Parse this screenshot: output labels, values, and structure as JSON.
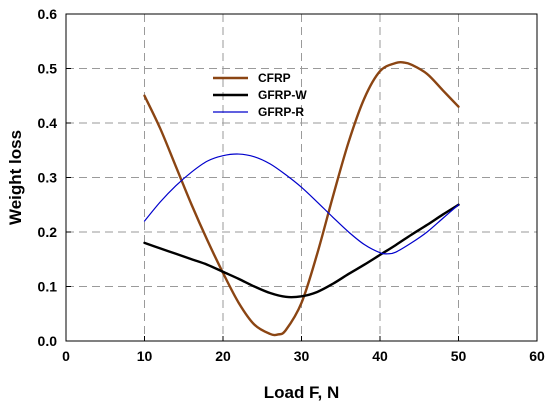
{
  "chart_data": {
    "type": "line",
    "title": "",
    "xlabel": "Load F, N",
    "ylabel": "Weight loss",
    "xlim": [
      0,
      60
    ],
    "ylim": [
      0,
      0.6
    ],
    "x_ticks": [
      0,
      10,
      20,
      30,
      40,
      50,
      60
    ],
    "y_ticks": [
      0.0,
      0.1,
      0.2,
      0.3,
      0.4,
      0.5,
      0.6
    ],
    "x_tick_labels": [
      "0",
      "10",
      "20",
      "30",
      "40",
      "50",
      "60"
    ],
    "y_tick_labels": [
      "0.0",
      "0.1",
      "0.2",
      "0.3",
      "0.4",
      "0.5",
      "0.6"
    ],
    "grid": true,
    "legend_position": "top-center",
    "series": [
      {
        "name": "CFRP",
        "color": "#8b4513",
        "x": [
          10,
          12,
          14,
          16,
          18,
          20,
          22,
          24,
          26,
          27,
          28,
          30,
          32,
          34,
          36,
          38,
          40,
          42,
          43,
          44,
          46,
          48,
          50
        ],
        "y": [
          0.45,
          0.39,
          0.32,
          0.25,
          0.185,
          0.125,
          0.07,
          0.03,
          0.013,
          0.012,
          0.02,
          0.07,
          0.16,
          0.265,
          0.365,
          0.445,
          0.495,
          0.51,
          0.511,
          0.507,
          0.49,
          0.46,
          0.43
        ]
      },
      {
        "name": "GFRP-W",
        "color": "#000000",
        "x": [
          10,
          12,
          14,
          16,
          18,
          20,
          22,
          24,
          26,
          28,
          30,
          32,
          34,
          36,
          38,
          40,
          42,
          44,
          46,
          48,
          50
        ],
        "y": [
          0.18,
          0.17,
          0.16,
          0.15,
          0.14,
          0.127,
          0.114,
          0.1,
          0.088,
          0.081,
          0.082,
          0.09,
          0.105,
          0.123,
          0.14,
          0.158,
          0.176,
          0.195,
          0.213,
          0.232,
          0.25
        ]
      },
      {
        "name": "GFRP-R",
        "color": "#0000cc",
        "x": [
          10,
          12,
          14,
          16,
          18,
          20,
          22,
          24,
          26,
          28,
          30,
          32,
          34,
          36,
          38,
          40,
          41,
          42,
          44,
          46,
          48,
          50
        ],
        "y": [
          0.22,
          0.255,
          0.285,
          0.31,
          0.33,
          0.34,
          0.343,
          0.338,
          0.325,
          0.305,
          0.282,
          0.255,
          0.227,
          0.2,
          0.177,
          0.162,
          0.16,
          0.163,
          0.18,
          0.2,
          0.225,
          0.25
        ]
      }
    ]
  }
}
